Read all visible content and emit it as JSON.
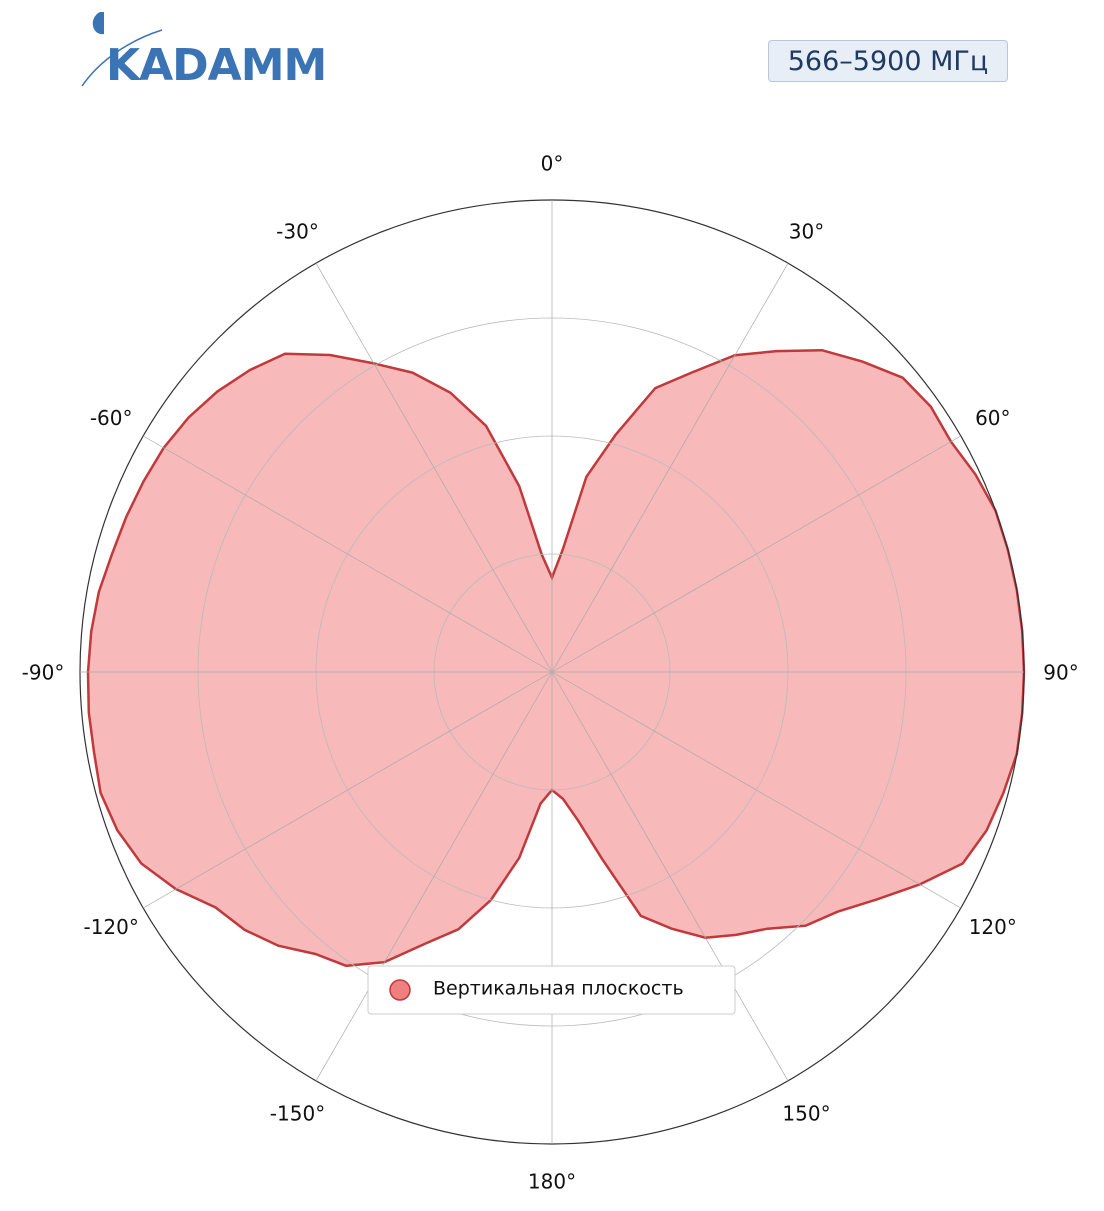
{
  "logo": "KADAMM",
  "badge": "566–5900 МГц",
  "chart_data": {
    "type": "polar",
    "theta_direction": "clockwise",
    "theta_zero": "top",
    "rlim": [
      0,
      1
    ],
    "rticks": [
      0.25,
      0.5,
      0.75,
      1
    ],
    "thetaticks": [
      {
        "value": 0,
        "label": "0°"
      },
      {
        "value": 30,
        "label": "30°"
      },
      {
        "value": 60,
        "label": "60°"
      },
      {
        "value": 90,
        "label": "90°"
      },
      {
        "value": 120,
        "label": "120°"
      },
      {
        "value": 150,
        "label": "150°"
      },
      {
        "value": 180,
        "label": "180°"
      },
      {
        "value": -150,
        "label": "-150°"
      },
      {
        "value": -120,
        "label": "-120°"
      },
      {
        "value": -90,
        "label": "-90°"
      },
      {
        "value": -60,
        "label": "-60°"
      },
      {
        "value": -30,
        "label": "-30°"
      }
    ],
    "grid": true,
    "legend": "bottom",
    "series": [
      {
        "name": "Вертикальная плоскость",
        "color": "#c0393b",
        "fill": "#f08080",
        "theta": [
          -175,
          -170,
          -165,
          -160,
          -155,
          -150,
          -145,
          -140,
          -135,
          -130,
          -125,
          -120,
          -115,
          -110,
          -105,
          -100,
          -95,
          -90,
          -85,
          -80,
          -75,
          -70,
          -65,
          -60,
          -55,
          -50,
          -45,
          -40,
          -35,
          -30,
          -25,
          -20,
          -15,
          -10,
          -5,
          0,
          5,
          10,
          15,
          20,
          25,
          30,
          35,
          40,
          45,
          50,
          55,
          60,
          65,
          70,
          75,
          80,
          85,
          90,
          95,
          100,
          105,
          110,
          115,
          120,
          125,
          130,
          135,
          140,
          145,
          150,
          155,
          160,
          165,
          170,
          175,
          180
        ],
        "values": [
          0.28,
          0.4,
          0.5,
          0.58,
          0.635,
          0.71,
          0.76,
          0.78,
          0.82,
          0.85,
          0.87,
          0.92,
          0.96,
          0.98,
          0.99,
          0.985,
          0.985,
          0.983,
          0.98,
          0.975,
          0.965,
          0.96,
          0.955,
          0.95,
          0.94,
          0.925,
          0.905,
          0.88,
          0.82,
          0.755,
          0.7,
          0.63,
          0.54,
          0.4,
          0.25,
          0.2,
          0.26,
          0.42,
          0.52,
          0.64,
          0.7,
          0.775,
          0.83,
          0.89,
          0.93,
          0.97,
          0.98,
          0.976,
          0.99,
          1.0,
          1.0,
          1.0,
          1.0,
          1.0,
          1.0,
          1.0,
          0.99,
          0.98,
          0.96,
          0.9,
          0.84,
          0.79,
          0.76,
          0.71,
          0.68,
          0.65,
          0.6,
          0.55,
          0.41,
          0.32,
          0.27,
          0.25
        ]
      }
    ]
  }
}
